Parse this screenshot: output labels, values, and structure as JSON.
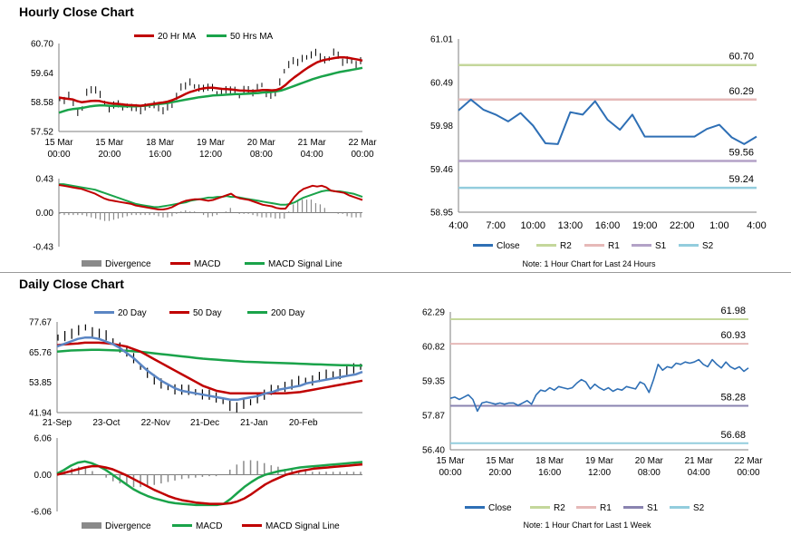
{
  "sections": {
    "hourly_title": "Hourly Close Chart",
    "daily_title": "Daily Close Chart"
  },
  "colors": {
    "red": "#c00000",
    "green": "#1aa34a",
    "blue": "#2e6fb5",
    "steelblue": "#5b86c4",
    "gray": "#8a8a8a",
    "r2": "#c4d79b",
    "r1": "#e6b9b8",
    "s1": "#b3a2c7",
    "s2": "#93cddd",
    "axis": "#7f7f7f"
  },
  "chart_data": [
    {
      "id": "hourly-price",
      "type": "line",
      "title": "",
      "legend": [
        {
          "name": "20 Hr MA",
          "color": "#c00000"
        },
        {
          "name": "50 Hrs MA",
          "color": "#1aa34a"
        }
      ],
      "y_ticks": [
        "60.70",
        "59.64",
        "58.58",
        "57.52"
      ],
      "ylim": [
        57.52,
        60.7
      ],
      "x_ticks": [
        [
          "15 Mar",
          "00:00"
        ],
        [
          "15 Mar",
          "20:00"
        ],
        [
          "18 Mar",
          "16:00"
        ],
        [
          "19 Mar",
          "12:00"
        ],
        [
          "20 Mar",
          "08:00"
        ],
        [
          "21 Mar",
          "04:00"
        ],
        [
          "22 Mar",
          "00:00"
        ]
      ],
      "series": [
        {
          "name": "Close",
          "values": [
            58.7,
            58.65,
            58.8,
            58.6,
            58.2,
            58.35,
            58.95,
            59.0,
            59.05,
            58.85,
            58.55,
            58.35,
            58.45,
            58.55,
            58.4,
            58.45,
            58.4,
            58.35,
            58.3,
            58.4,
            58.45,
            58.5,
            58.35,
            58.3,
            58.4,
            58.45,
            58.8,
            59.1,
            59.2,
            59.3,
            59.15,
            59.1,
            59.05,
            59.15,
            59.1,
            58.9,
            58.95,
            59.0,
            59.05,
            59.0,
            58.8,
            59.05,
            59.0,
            58.95,
            59.1,
            59.2,
            58.9,
            58.8,
            58.95,
            59.3,
            59.7,
            59.95,
            60.05,
            60.05,
            60.15,
            60.2,
            60.3,
            60.35,
            60.25,
            60.1,
            60.15,
            60.4,
            60.25,
            60.05,
            60.1,
            60.05,
            59.95,
            60.05
          ]
        },
        {
          "name": "20 Hr MA",
          "values": [
            58.75,
            58.72,
            58.7,
            58.68,
            58.62,
            58.58,
            58.6,
            58.62,
            58.63,
            58.62,
            58.58,
            58.55,
            58.53,
            58.52,
            58.5,
            58.48,
            58.47,
            58.46,
            58.45,
            58.47,
            58.5,
            58.52,
            58.55,
            58.57,
            58.6,
            58.65,
            58.72,
            58.8,
            58.88,
            58.95,
            59.0,
            59.05,
            59.08,
            59.1,
            59.1,
            59.08,
            59.06,
            59.05,
            59.04,
            59.02,
            59.0,
            59.0,
            58.99,
            58.99,
            59.0,
            59.02,
            59.02,
            59.01,
            59.02,
            59.08,
            59.2,
            59.35,
            59.48,
            59.6,
            59.72,
            59.83,
            59.93,
            60.02,
            60.08,
            60.12,
            60.15,
            60.18,
            60.2,
            60.2,
            60.18,
            60.15,
            60.12,
            60.08
          ]
        },
        {
          "name": "50 Hrs MA",
          "values": [
            58.2,
            58.25,
            58.3,
            58.33,
            58.35,
            58.37,
            58.4,
            58.43,
            58.45,
            58.46,
            58.46,
            58.45,
            58.44,
            58.44,
            58.43,
            58.43,
            58.43,
            58.43,
            58.44,
            58.45,
            58.47,
            58.49,
            58.51,
            58.53,
            58.55,
            58.58,
            58.61,
            58.64,
            58.67,
            58.7,
            58.73,
            58.76,
            58.78,
            58.8,
            58.82,
            58.83,
            58.84,
            58.85,
            58.86,
            58.87,
            58.87,
            58.88,
            58.89,
            58.9,
            58.91,
            58.93,
            58.94,
            58.95,
            58.97,
            59.0,
            59.05,
            59.11,
            59.17,
            59.23,
            59.29,
            59.35,
            59.41,
            59.46,
            59.51,
            59.55,
            59.59,
            59.63,
            59.67,
            59.7,
            59.73,
            59.76,
            59.79,
            59.82
          ]
        }
      ]
    },
    {
      "id": "hourly-macd",
      "type": "line",
      "legend": [
        {
          "name": "Divergence",
          "color": "#8a8a8a"
        },
        {
          "name": "MACD",
          "color": "#c00000"
        },
        {
          "name": "MACD Signal Line",
          "color": "#1aa34a"
        }
      ],
      "y_ticks": [
        "0.43",
        "0.00",
        "-0.43"
      ],
      "ylim": [
        -0.43,
        0.43
      ],
      "series": [
        {
          "name": "MACD",
          "values": [
            0.35,
            0.34,
            0.33,
            0.32,
            0.31,
            0.3,
            0.28,
            0.26,
            0.24,
            0.21,
            0.18,
            0.16,
            0.15,
            0.14,
            0.13,
            0.12,
            0.11,
            0.09,
            0.08,
            0.07,
            0.06,
            0.05,
            0.04,
            0.04,
            0.05,
            0.07,
            0.1,
            0.13,
            0.15,
            0.16,
            0.17,
            0.17,
            0.16,
            0.15,
            0.16,
            0.18,
            0.2,
            0.22,
            0.24,
            0.2,
            0.18,
            0.17,
            0.16,
            0.14,
            0.12,
            0.1,
            0.09,
            0.08,
            0.06,
            0.05,
            0.05,
            0.12,
            0.2,
            0.26,
            0.3,
            0.32,
            0.34,
            0.33,
            0.34,
            0.32,
            0.28,
            0.27,
            0.26,
            0.25,
            0.22,
            0.2,
            0.18,
            0.16
          ]
        },
        {
          "name": "MACD Signal Line",
          "values": [
            0.36,
            0.36,
            0.35,
            0.34,
            0.33,
            0.32,
            0.31,
            0.3,
            0.29,
            0.27,
            0.25,
            0.23,
            0.21,
            0.19,
            0.17,
            0.15,
            0.13,
            0.11,
            0.1,
            0.09,
            0.08,
            0.07,
            0.07,
            0.08,
            0.09,
            0.1,
            0.11,
            0.12,
            0.13,
            0.15,
            0.16,
            0.17,
            0.18,
            0.19,
            0.19,
            0.2,
            0.2,
            0.21,
            0.2,
            0.2,
            0.19,
            0.18,
            0.17,
            0.16,
            0.15,
            0.14,
            0.13,
            0.12,
            0.11,
            0.1,
            0.1,
            0.11,
            0.13,
            0.16,
            0.19,
            0.21,
            0.23,
            0.25,
            0.27,
            0.28,
            0.28,
            0.27,
            0.27,
            0.26,
            0.25,
            0.24,
            0.22,
            0.2
          ]
        }
      ]
    },
    {
      "id": "hourly-levels",
      "type": "line",
      "y_ticks": [
        "61.01",
        "60.49",
        "59.98",
        "59.46",
        "58.95"
      ],
      "ylim": [
        58.95,
        61.01
      ],
      "x_ticks": [
        "4:00",
        "7:00",
        "10:00",
        "13:00",
        "16:00",
        "19:00",
        "22:00",
        "1:00",
        "4:00"
      ],
      "levels": [
        {
          "name": "R2",
          "value": 60.7,
          "label": "60.70",
          "color": "#c4d79b"
        },
        {
          "name": "R1",
          "value": 60.29,
          "label": "60.29",
          "color": "#e6b9b8"
        },
        {
          "name": "S1",
          "value": 59.56,
          "label": "59.56",
          "color": "#b3a2c7"
        },
        {
          "name": "S2",
          "value": 59.24,
          "label": "59.24",
          "color": "#93cddd"
        }
      ],
      "series": [
        {
          "name": "Close",
          "values": [
            60.16,
            60.29,
            60.17,
            60.11,
            60.03,
            60.13,
            59.98,
            59.77,
            59.76,
            60.14,
            60.11,
            60.27,
            60.05,
            59.93,
            60.11,
            59.85,
            59.85,
            59.85,
            59.85,
            59.85,
            59.94,
            59.99,
            59.84,
            59.76,
            59.85
          ]
        }
      ],
      "legend": [
        {
          "name": "Close",
          "color": "#2e6fb5"
        },
        {
          "name": "R2",
          "color": "#c4d79b"
        },
        {
          "name": "R1",
          "color": "#e6b9b8"
        },
        {
          "name": "S1",
          "color": "#b3a2c7"
        },
        {
          "name": "S2",
          "color": "#93cddd"
        }
      ],
      "note": "Note: 1 Hour Chart for Last 24 Hours"
    },
    {
      "id": "daily-price",
      "type": "line",
      "legend": [
        {
          "name": "20 Day",
          "color": "#5b86c4"
        },
        {
          "name": "50 Day",
          "color": "#c00000"
        },
        {
          "name": "200 Day",
          "color": "#1aa34a"
        }
      ],
      "y_ticks": [
        "77.67",
        "65.76",
        "53.85",
        "41.94"
      ],
      "ylim": [
        41.94,
        77.67
      ],
      "x_ticks": [
        "21-Sep",
        "23-Oct",
        "22-Nov",
        "21-Dec",
        "21-Jan",
        "20-Feb"
      ],
      "series": [
        {
          "name": "Close",
          "values": [
            71.5,
            72.5,
            73.0,
            74.0,
            75.5,
            74.0,
            73.0,
            72.0,
            70.0,
            68.0,
            66.0,
            63.0,
            60.0,
            58.0,
            55.0,
            53.0,
            52.0,
            51.5,
            51.0,
            50.5,
            50.0,
            49.5,
            49.0,
            47.5,
            46.5,
            45.0,
            44.0,
            45.0,
            46.0,
            48.0,
            49.0,
            50.5,
            51.5,
            52.5,
            53.0,
            54.0,
            54.5,
            55.0,
            56.0,
            56.5,
            57.0,
            57.5,
            58.5,
            59.0,
            60.0
          ]
        },
        {
          "name": "20 Day",
          "values": [
            68.0,
            69.0,
            70.0,
            71.0,
            71.5,
            71.5,
            71.0,
            70.0,
            69.0,
            67.5,
            65.5,
            63.5,
            61.0,
            58.5,
            56.5,
            54.5,
            53.0,
            51.5,
            50.5,
            50.0,
            49.5,
            49.0,
            48.5,
            48.0,
            47.5,
            47.0,
            47.0,
            47.5,
            48.0,
            48.5,
            49.5,
            50.0,
            51.0,
            51.5,
            52.0,
            52.5,
            53.5,
            54.0,
            54.5,
            55.0,
            55.5,
            56.0,
            56.5,
            57.0,
            58.0
          ]
        },
        {
          "name": "50 Day",
          "values": [
            68.5,
            68.8,
            69.0,
            69.2,
            69.5,
            69.5,
            69.5,
            69.3,
            69.0,
            68.5,
            68.0,
            67.0,
            66.0,
            64.5,
            63.0,
            61.5,
            60.0,
            58.5,
            57.0,
            55.5,
            54.0,
            52.5,
            51.5,
            50.5,
            50.0,
            49.5,
            49.5,
            49.5,
            49.5,
            49.5,
            49.5,
            49.5,
            49.5,
            49.6,
            49.8,
            50.0,
            50.5,
            51.0,
            51.5,
            52.0,
            52.5,
            53.0,
            53.5,
            54.0,
            54.5
          ]
        },
        {
          "name": "200 Day",
          "values": [
            66.0,
            66.2,
            66.4,
            66.5,
            66.6,
            66.7,
            66.7,
            66.6,
            66.5,
            66.4,
            66.3,
            66.1,
            65.9,
            65.6,
            65.3,
            65.0,
            64.7,
            64.4,
            64.1,
            63.8,
            63.5,
            63.2,
            63.0,
            62.8,
            62.6,
            62.4,
            62.2,
            62.0,
            61.9,
            61.8,
            61.7,
            61.6,
            61.5,
            61.4,
            61.3,
            61.2,
            61.1,
            61.0,
            60.9,
            60.8,
            60.7,
            60.6,
            60.6,
            60.5,
            60.5
          ]
        }
      ]
    },
    {
      "id": "daily-macd",
      "type": "line",
      "legend": [
        {
          "name": "Divergence",
          "color": "#8a8a8a"
        },
        {
          "name": "MACD",
          "color": "#1aa34a"
        },
        {
          "name": "MACD Signal Line",
          "color": "#c00000"
        }
      ],
      "y_ticks": [
        "6.06",
        "0.00",
        "-6.06"
      ],
      "ylim": [
        -6.06,
        6.06
      ],
      "series": [
        {
          "name": "MACD",
          "values": [
            0.2,
            0.8,
            1.5,
            2.0,
            2.2,
            1.9,
            1.4,
            0.8,
            0.0,
            -0.8,
            -1.6,
            -2.4,
            -3.0,
            -3.5,
            -3.9,
            -4.2,
            -4.5,
            -4.7,
            -4.8,
            -4.9,
            -5.0,
            -5.0,
            -5.0,
            -5.0,
            -4.8,
            -4.0,
            -3.0,
            -2.0,
            -1.2,
            -0.5,
            0.0,
            0.3,
            0.6,
            0.8,
            1.0,
            1.2,
            1.3,
            1.4,
            1.5,
            1.6,
            1.7,
            1.8,
            1.9,
            2.0,
            2.1
          ]
        },
        {
          "name": "MACD Signal Line",
          "values": [
            0.0,
            0.3,
            0.6,
            0.9,
            1.2,
            1.4,
            1.4,
            1.2,
            0.9,
            0.4,
            -0.1,
            -0.7,
            -1.3,
            -1.9,
            -2.5,
            -3.0,
            -3.5,
            -3.9,
            -4.2,
            -4.4,
            -4.6,
            -4.7,
            -4.8,
            -4.8,
            -4.8,
            -4.7,
            -4.4,
            -3.9,
            -3.2,
            -2.4,
            -1.6,
            -1.0,
            -0.5,
            0.0,
            0.3,
            0.6,
            0.8,
            1.0,
            1.1,
            1.2,
            1.3,
            1.4,
            1.5,
            1.6,
            1.7
          ]
        }
      ]
    },
    {
      "id": "daily-levels",
      "type": "line",
      "y_ticks": [
        "62.29",
        "60.82",
        "59.35",
        "57.87",
        "56.40"
      ],
      "ylim": [
        56.4,
        62.29
      ],
      "x_ticks": [
        [
          "15 Mar",
          "00:00"
        ],
        [
          "15 Mar",
          "20:00"
        ],
        [
          "18 Mar",
          "16:00"
        ],
        [
          "19 Mar",
          "12:00"
        ],
        [
          "20 Mar",
          "08:00"
        ],
        [
          "21 Mar",
          "04:00"
        ],
        [
          "22 Mar",
          "00:00"
        ]
      ],
      "levels": [
        {
          "name": "R2",
          "value": 61.98,
          "label": "61.98",
          "color": "#c4d79b"
        },
        {
          "name": "R1",
          "value": 60.93,
          "label": "60.93",
          "color": "#e6b9b8"
        },
        {
          "name": "S1",
          "value": 58.28,
          "label": "58.28",
          "color": "#8a83b0"
        },
        {
          "name": "S2",
          "value": 56.68,
          "label": "56.68",
          "color": "#93cddd"
        }
      ],
      "series": [
        {
          "name": "Close",
          "values": [
            58.6,
            58.65,
            58.55,
            58.65,
            58.75,
            58.55,
            58.05,
            58.4,
            58.45,
            58.4,
            58.35,
            58.4,
            58.35,
            58.4,
            58.4,
            58.3,
            58.4,
            58.5,
            58.35,
            58.75,
            58.95,
            58.9,
            59.05,
            58.95,
            59.1,
            59.05,
            59.0,
            59.05,
            59.25,
            59.4,
            59.3,
            59.0,
            59.2,
            59.05,
            58.95,
            59.05,
            58.9,
            59.0,
            58.95,
            59.1,
            59.05,
            59.0,
            59.3,
            59.2,
            58.85,
            59.4,
            60.05,
            59.8,
            59.95,
            59.9,
            60.1,
            60.05,
            60.15,
            60.1,
            60.15,
            60.25,
            60.05,
            59.95,
            60.25,
            60.05,
            59.9,
            60.15,
            59.95,
            59.85,
            59.95,
            59.75,
            59.9
          ]
        }
      ],
      "legend": [
        {
          "name": "Close",
          "color": "#2e6fb5"
        },
        {
          "name": "R2",
          "color": "#c4d79b"
        },
        {
          "name": "R1",
          "color": "#e6b9b8"
        },
        {
          "name": "S1",
          "color": "#8a83b0"
        },
        {
          "name": "S2",
          "color": "#93cddd"
        }
      ],
      "note": "Note: 1 Hour Chart for Last 1 Week"
    }
  ]
}
